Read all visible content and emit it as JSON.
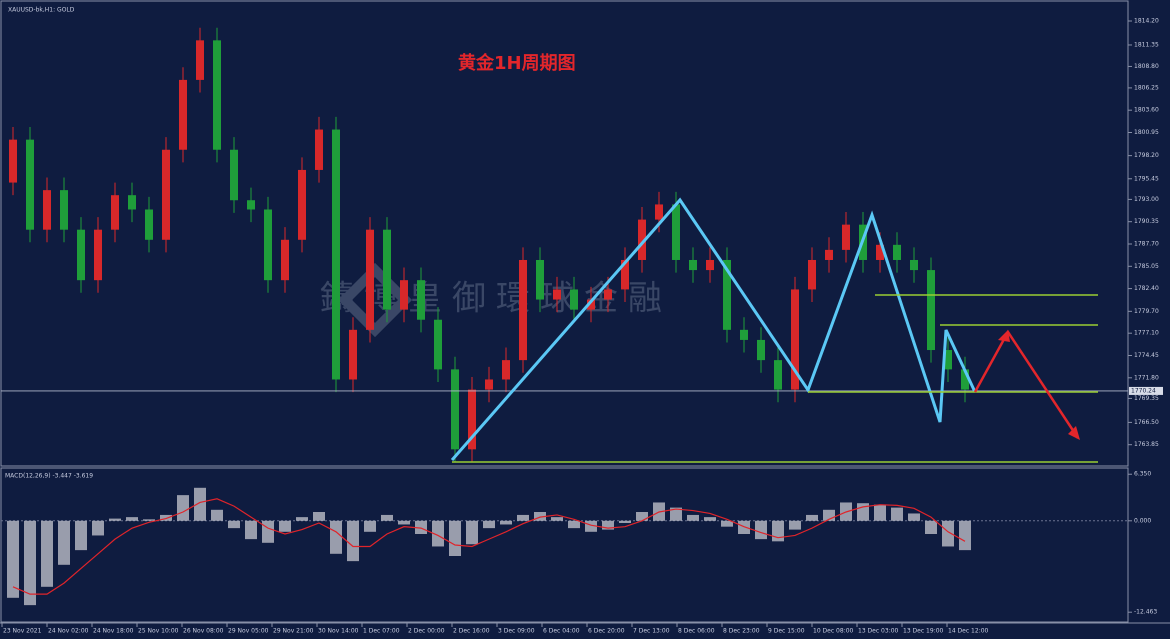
{
  "chart_data": [
    {
      "type": "candlestick",
      "header": "XAUUSD-bk,H1: GOLD",
      "title": "黄金1H周期图",
      "watermark": "鑄博皇御環球金融",
      "up_color": "#d8282a",
      "down_color": "#1f9e3a",
      "open": [
        1795.0,
        1800.1,
        1789.4,
        1794.1,
        1789.4,
        1783.4,
        1789.4,
        1793.5,
        1791.8,
        1788.2,
        1798.9,
        1807.2,
        1811.9,
        1798.9,
        1792.9,
        1791.8,
        1783.4,
        1788.2,
        1796.5,
        1801.3,
        1771.6,
        1777.5,
        1789.4,
        1779.9,
        1783.4,
        1778.7,
        1772.8,
        1763.3,
        1770.4,
        1771.6,
        1773.9,
        1785.8,
        1781.1,
        1782.3,
        1779.9,
        1781.1,
        1782.3,
        1785.8,
        1790.6,
        1792.4,
        1785.8,
        1784.6,
        1785.8,
        1777.5,
        1776.3,
        1773.9,
        1770.4,
        1782.3,
        1785.8,
        1787.0,
        1790.0,
        1785.8,
        1787.6,
        1785.8,
        1784.6,
        1775.1,
        1772.8
      ],
      "high": [
        1801.6,
        1801.6,
        1795.6,
        1795.6,
        1790.9,
        1790.9,
        1795.0,
        1795.0,
        1793.3,
        1800.4,
        1808.7,
        1813.4,
        1813.4,
        1800.4,
        1794.4,
        1793.3,
        1789.7,
        1798.0,
        1802.8,
        1802.8,
        1779.0,
        1790.9,
        1790.9,
        1784.9,
        1784.9,
        1780.2,
        1774.3,
        1771.9,
        1773.1,
        1775.4,
        1787.3,
        1787.3,
        1783.8,
        1783.8,
        1782.6,
        1783.8,
        1787.3,
        1792.1,
        1793.9,
        1793.9,
        1787.3,
        1787.3,
        1787.3,
        1779.0,
        1777.8,
        1775.4,
        1783.8,
        1787.3,
        1788.5,
        1791.5,
        1791.5,
        1789.1,
        1789.1,
        1787.3,
        1786.1,
        1776.6,
        1774.3
      ],
      "low": [
        1793.5,
        1787.9,
        1787.9,
        1787.9,
        1781.9,
        1781.9,
        1787.9,
        1790.3,
        1786.7,
        1786.7,
        1797.4,
        1805.7,
        1797.4,
        1791.4,
        1790.3,
        1781.9,
        1781.9,
        1786.7,
        1795.0,
        1770.1,
        1770.1,
        1776.0,
        1778.4,
        1778.4,
        1777.2,
        1771.3,
        1761.8,
        1761.8,
        1768.9,
        1770.1,
        1772.4,
        1779.6,
        1779.6,
        1778.4,
        1778.4,
        1779.6,
        1780.8,
        1784.3,
        1789.1,
        1784.3,
        1783.1,
        1783.1,
        1776.0,
        1774.8,
        1772.4,
        1768.9,
        1768.9,
        1780.8,
        1784.3,
        1785.5,
        1784.3,
        1784.3,
        1784.3,
        1783.1,
        1773.6,
        1771.3,
        1768.9
      ],
      "close": [
        1800.1,
        1789.4,
        1794.1,
        1789.4,
        1783.4,
        1789.4,
        1793.5,
        1791.8,
        1788.2,
        1798.9,
        1807.2,
        1811.9,
        1798.9,
        1792.9,
        1791.8,
        1783.4,
        1788.2,
        1796.5,
        1801.3,
        1771.6,
        1777.5,
        1789.4,
        1779.9,
        1783.4,
        1778.7,
        1772.8,
        1763.3,
        1770.4,
        1771.6,
        1773.9,
        1785.8,
        1781.1,
        1782.3,
        1779.9,
        1781.1,
        1782.3,
        1785.8,
        1790.6,
        1792.4,
        1785.8,
        1784.6,
        1785.8,
        1777.5,
        1776.3,
        1773.9,
        1770.4,
        1782.3,
        1785.8,
        1787.0,
        1790.0,
        1785.8,
        1787.6,
        1785.8,
        1784.6,
        1775.1,
        1772.8,
        1770.4
      ],
      "ylim": [
        1761.2,
        1816.1
      ],
      "yticks": [
        {
          "value": 1814.2,
          "label": "1814.20"
        },
        {
          "value": 1811.35,
          "label": "1811.35"
        },
        {
          "value": 1808.8,
          "label": "1808.80"
        },
        {
          "value": 1806.25,
          "label": "1806.25"
        },
        {
          "value": 1803.6,
          "label": "1803.60"
        },
        {
          "value": 1800.95,
          "label": "1800.95"
        },
        {
          "value": 1798.2,
          "label": "1798.20"
        },
        {
          "value": 1795.45,
          "label": "1795.45"
        },
        {
          "value": 1793.0,
          "label": "1793.00"
        },
        {
          "value": 1790.35,
          "label": "1790.35"
        },
        {
          "value": 1787.7,
          "label": "1787.70"
        },
        {
          "value": 1785.05,
          "label": "1785.05"
        },
        {
          "value": 1782.4,
          "label": "1782.40"
        },
        {
          "value": 1779.7,
          "label": "1779.70"
        },
        {
          "value": 1777.1,
          "label": "1777.10"
        },
        {
          "value": 1774.45,
          "label": "1774.45"
        },
        {
          "value": 1771.8,
          "label": "1771.80"
        },
        {
          "value": 1769.35,
          "label": "1769.35"
        },
        {
          "value": 1766.5,
          "label": "1766.50"
        },
        {
          "value": 1763.85,
          "label": "1763.85"
        }
      ],
      "current_price": 1770.24,
      "time_labels": [
        "23 Nov 2021",
        "24 Nov 02:00",
        "24 Nov 18:00",
        "25 Nov 10:00",
        "26 Nov 08:00",
        "29 Nov 05:00",
        "29 Nov 21:00",
        "30 Nov 14:00",
        "1 Dec 07:00",
        "2 Dec 00:00",
        "2 Dec 16:00",
        "3 Dec 09:00",
        "6 Dec 04:00",
        "6 Dec 20:00",
        "7 Dec 13:00",
        "8 Dec 06:00",
        "8 Dec 23:00",
        "9 Dec 15:00",
        "10 Dec 08:00",
        "13 Dec 03:00",
        "13 Dec 19:00",
        "14 Dec 12:00"
      ]
    },
    {
      "type": "macd",
      "label": "MACD(12,26,9) -3.447 -3.619",
      "histogram_color": "#c8c8d0",
      "signal_color": "#e0242a",
      "histogram": [
        -10.5,
        -11.5,
        -9,
        -6,
        -4,
        -2,
        0.3,
        0.5,
        0.2,
        0.8,
        3.5,
        4.5,
        1.5,
        -1,
        -2.5,
        -3,
        -1.5,
        0.5,
        1.2,
        -4.5,
        -5.5,
        -1.5,
        0.8,
        -0.5,
        -1.8,
        -3.5,
        -4.8,
        -3.2,
        -1,
        -0.5,
        0.8,
        1.2,
        0.5,
        -1,
        -1.5,
        -1.2,
        -0.3,
        1.2,
        2.5,
        1.8,
        0.8,
        0.5,
        -0.8,
        -1.8,
        -2.5,
        -2.8,
        -1.2,
        0.8,
        1.5,
        2.5,
        2.4,
        2.2,
        1.8,
        1,
        -1.8,
        -3.5,
        -4
      ],
      "signal": [
        -9,
        -10,
        -10,
        -8.5,
        -6.5,
        -4.5,
        -2.5,
        -1,
        -0.2,
        0.3,
        1.2,
        2.5,
        3,
        2,
        0.5,
        -1,
        -1.8,
        -1.2,
        -0.3,
        -1.5,
        -3.5,
        -3.5,
        -1.8,
        -0.8,
        -1,
        -2,
        -3.3,
        -3.5,
        -2.5,
        -1.5,
        -0.4,
        0.5,
        0.8,
        0.2,
        -0.6,
        -1,
        -0.8,
        0,
        1.2,
        1.6,
        1.4,
        1,
        0.2,
        -0.8,
        -1.6,
        -2.3,
        -2,
        -1,
        0.2,
        1.2,
        1.9,
        2.2,
        2.1,
        1.7,
        0.5,
        -1.5,
        -2.8
      ],
      "ylim": [
        -13.8,
        7.2
      ],
      "yticks": [
        {
          "value": 6.35,
          "label": "6.350"
        },
        {
          "value": 0,
          "label": "0.000"
        },
        {
          "value": -12.463,
          "label": "-12.463"
        }
      ]
    }
  ]
}
